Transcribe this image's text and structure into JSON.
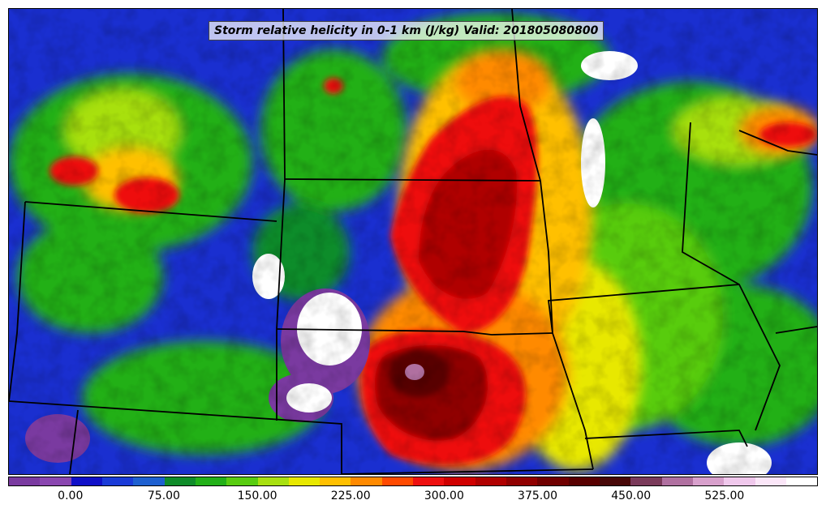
{
  "title": "Storm relative helicity in 0-1 km (J/kg) Valid: 201805080800",
  "colorbar": {
    "min": -50,
    "max": 600,
    "step": 25,
    "colors": [
      "#7a3aa0",
      "#8a46b0",
      "#1010c8",
      "#1a3bd8",
      "#1e60d0",
      "#0f8c2a",
      "#22b018",
      "#58cc10",
      "#a8e010",
      "#e8e800",
      "#ffc000",
      "#ff8a00",
      "#ff4a00",
      "#ee1010",
      "#d00000",
      "#b00000",
      "#900000",
      "#700000",
      "#580000",
      "#480808",
      "#7a3a5a",
      "#b070a0",
      "#d8a0cc",
      "#f0c8ec",
      "#fbe6f8",
      "#ffffff"
    ],
    "tick_labels": [
      "0.00",
      "75.00",
      "150.00",
      "225.00",
      "300.00",
      "375.00",
      "450.00",
      "525.00"
    ],
    "tick_values": [
      0,
      75,
      150,
      225,
      300,
      375,
      450,
      525
    ]
  }
}
